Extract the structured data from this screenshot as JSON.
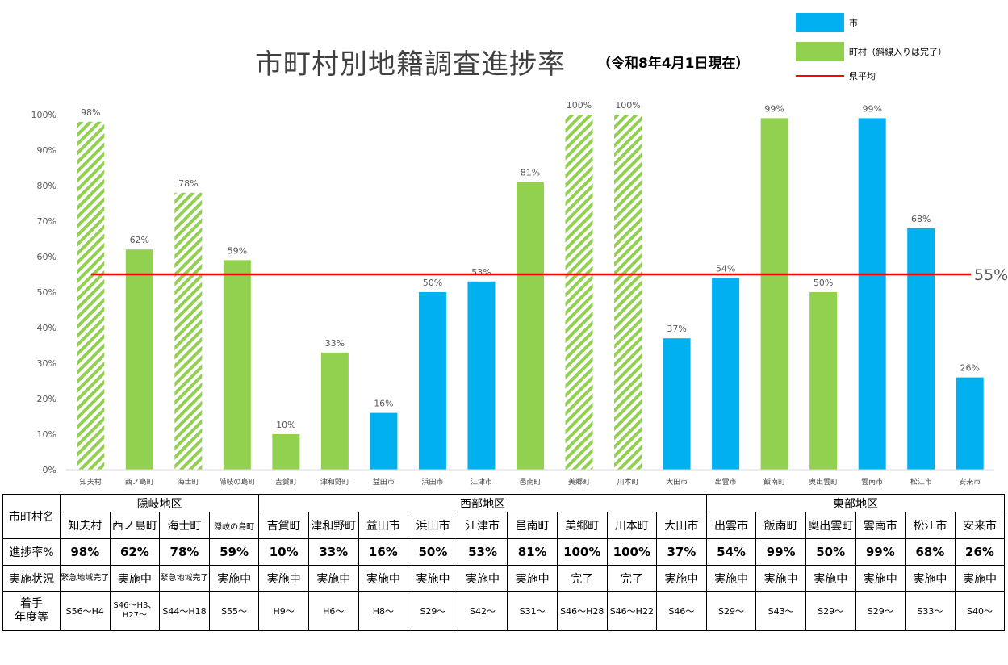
{
  "title": "市町村別地籍調査進捗率",
  "subtitle": "（令和8年4月1日現在）",
  "legend": {
    "city": "市",
    "town": "町村（斜線入りは完了）",
    "average": "県平均"
  },
  "colors": {
    "city": "#00b0f0",
    "town": "#92d050",
    "average": "#ff0000",
    "axis_text": "#595959",
    "grid": "#d9d9d9"
  },
  "chart_data": {
    "type": "bar",
    "title": "市町村別地籍調査進捗率",
    "subtitle": "（令和8年4月1日現在）",
    "categories": [
      "知夫村",
      "西ノ島町",
      "海士町",
      "隠岐の島町",
      "吉賀町",
      "津和野町",
      "益田市",
      "浜田市",
      "江津市",
      "邑南町",
      "美郷町",
      "川本町",
      "大田市",
      "出雲市",
      "飯南町",
      "奥出雲町",
      "雲南市",
      "松江市",
      "安来市"
    ],
    "values": [
      98,
      62,
      78,
      59,
      10,
      33,
      16,
      50,
      53,
      81,
      100,
      100,
      37,
      54,
      99,
      50,
      99,
      68,
      26
    ],
    "value_labels": [
      "98%",
      "62%",
      "78%",
      "59%",
      "10%",
      "33%",
      "16%",
      "50%",
      "53%",
      "81%",
      "100%",
      "100%",
      "37%",
      "54%",
      "99%",
      "50%",
      "99%",
      "68%",
      "26%"
    ],
    "kind": [
      "town",
      "town",
      "town",
      "town",
      "town",
      "town",
      "city",
      "city",
      "city",
      "town",
      "town",
      "town",
      "city",
      "city",
      "town",
      "town",
      "city",
      "city",
      "city"
    ],
    "completed": [
      true,
      false,
      true,
      false,
      false,
      false,
      false,
      false,
      false,
      false,
      true,
      true,
      false,
      false,
      false,
      false,
      false,
      false,
      false
    ],
    "yticks": [
      "0%",
      "10%",
      "20%",
      "30%",
      "40%",
      "50%",
      "60%",
      "70%",
      "80%",
      "90%",
      "100%"
    ],
    "ylim": [
      0,
      100
    ],
    "average": 55,
    "average_label": "55%",
    "grid": false,
    "legend_position": "top-right"
  },
  "table": {
    "row_labels": {
      "name": "市町村名",
      "progress": "進捗率%",
      "status": "実施状況",
      "start": "着手\n年度等"
    },
    "regions": [
      {
        "name": "隠岐地区"
      },
      {
        "name": "西部地区"
      },
      {
        "name": "東部地区"
      }
    ],
    "names": [
      "知夫村",
      "西ノ島町",
      "海士町",
      "隠岐の島町",
      "吉賀町",
      "津和野町",
      "益田市",
      "浜田市",
      "江津市",
      "邑南町",
      "美郷町",
      "川本町",
      "大田市",
      "出雲市",
      "飯南町",
      "奥出雲町",
      "雲南市",
      "松江市",
      "安来市"
    ],
    "progress": [
      "98%",
      "62%",
      "78%",
      "59%",
      "10%",
      "33%",
      "16%",
      "50%",
      "53%",
      "81%",
      "100%",
      "100%",
      "37%",
      "54%",
      "99%",
      "50%",
      "99%",
      "68%",
      "26%"
    ],
    "status": [
      "緊急地域完了",
      "実施中",
      "緊急地域完了",
      "実施中",
      "実施中",
      "実施中",
      "実施中",
      "実施中",
      "実施中",
      "実施中",
      "完了",
      "完了",
      "実施中",
      "実施中",
      "実施中",
      "実施中",
      "実施中",
      "実施中",
      "実施中"
    ],
    "start": [
      "S56～H4",
      "S46～H3、H27～",
      "S44～H18",
      "S55～",
      "H9～",
      "H6～",
      "H8～",
      "S29～",
      "S42～",
      "S31～",
      "S46～H28",
      "S46～H22",
      "S46～",
      "S29～",
      "S43～",
      "S29～",
      "S29～",
      "S33～",
      "S40～"
    ]
  }
}
